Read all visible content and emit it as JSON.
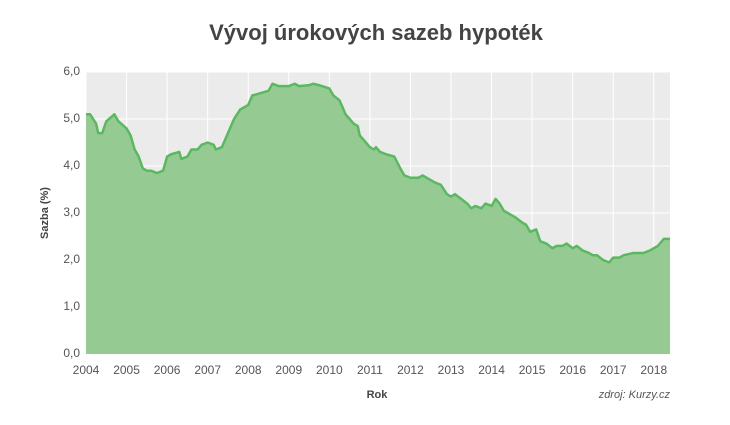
{
  "chart_data": {
    "type": "area",
    "title": "Vývoj úrokových sazeb hypoték",
    "y_label": "Sazba (%)",
    "x_label": "Rok",
    "source": "zdroj: Kurzy.cz",
    "color": "#5cb860",
    "fill_color": "#95cb93",
    "background": "#ebebeb",
    "grid": true,
    "xlim": [
      2004,
      2018.4
    ],
    "xticks": [
      2004,
      2005,
      2006,
      2007,
      2008,
      2009,
      2010,
      2011,
      2012,
      2013,
      2014,
      2015,
      2016,
      2017,
      2018
    ],
    "ylim": [
      0,
      6
    ],
    "yticks": [
      {
        "value": 0,
        "label": "0,0"
      },
      {
        "value": 1,
        "label": "1,0"
      },
      {
        "value": 2,
        "label": "2,0"
      },
      {
        "value": 3,
        "label": "3,0"
      },
      {
        "value": 4,
        "label": "4,0"
      },
      {
        "value": 5,
        "label": "5,0"
      },
      {
        "value": 6,
        "label": "6,0"
      }
    ],
    "x": [
      2004.0,
      2004.1,
      2004.25,
      2004.3,
      2004.4,
      2004.5,
      2004.7,
      2004.8,
      2005.0,
      2005.1,
      2005.2,
      2005.3,
      2005.4,
      2005.5,
      2005.6,
      2005.75,
      2005.9,
      2006.0,
      2006.1,
      2006.3,
      2006.35,
      2006.5,
      2006.6,
      2006.75,
      2006.85,
      2007.0,
      2007.15,
      2007.2,
      2007.35,
      2007.5,
      2007.65,
      2007.8,
      2008.0,
      2008.1,
      2008.3,
      2008.5,
      2008.6,
      2008.75,
      2009.0,
      2009.15,
      2009.25,
      2009.5,
      2009.6,
      2009.75,
      2010.0,
      2010.1,
      2010.25,
      2010.4,
      2010.5,
      2010.6,
      2010.7,
      2010.75,
      2010.9,
      2011.0,
      2011.1,
      2011.15,
      2011.25,
      2011.4,
      2011.6,
      2011.75,
      2011.85,
      2012.0,
      2012.2,
      2012.3,
      2012.5,
      2012.6,
      2012.75,
      2012.9,
      2013.0,
      2013.1,
      2013.25,
      2013.4,
      2013.5,
      2013.6,
      2013.75,
      2013.85,
      2014.0,
      2014.1,
      2014.2,
      2014.3,
      2014.5,
      2014.6,
      2014.75,
      2014.85,
      2014.95,
      2015.1,
      2015.2,
      2015.35,
      2015.5,
      2015.6,
      2015.75,
      2015.85,
      2016.0,
      2016.1,
      2016.25,
      2016.4,
      2016.5,
      2016.6,
      2016.75,
      2016.9,
      2017.0,
      2017.15,
      2017.25,
      2017.5,
      2017.75,
      2017.9,
      2018.0,
      2018.1,
      2018.25,
      2018.4
    ],
    "values": [
      5.1,
      5.1,
      4.9,
      4.7,
      4.7,
      4.95,
      5.1,
      4.95,
      4.8,
      4.65,
      4.35,
      4.2,
      3.95,
      3.9,
      3.9,
      3.85,
      3.9,
      4.2,
      4.25,
      4.3,
      4.15,
      4.2,
      4.35,
      4.35,
      4.45,
      4.5,
      4.45,
      4.35,
      4.4,
      4.7,
      5.0,
      5.2,
      5.3,
      5.5,
      5.55,
      5.6,
      5.75,
      5.7,
      5.7,
      5.75,
      5.7,
      5.72,
      5.75,
      5.72,
      5.65,
      5.5,
      5.4,
      5.1,
      5.0,
      4.9,
      4.85,
      4.65,
      4.5,
      4.4,
      4.35,
      4.4,
      4.3,
      4.25,
      4.2,
      3.95,
      3.8,
      3.75,
      3.75,
      3.8,
      3.7,
      3.65,
      3.6,
      3.4,
      3.35,
      3.4,
      3.3,
      3.2,
      3.1,
      3.15,
      3.1,
      3.2,
      3.15,
      3.3,
      3.2,
      3.05,
      2.95,
      2.9,
      2.8,
      2.75,
      2.6,
      2.65,
      2.4,
      2.35,
      2.25,
      2.3,
      2.3,
      2.35,
      2.25,
      2.3,
      2.2,
      2.15,
      2.1,
      2.1,
      2.0,
      1.95,
      2.05,
      2.05,
      2.1,
      2.15,
      2.15,
      2.2,
      2.25,
      2.3,
      2.45,
      2.45
    ]
  }
}
